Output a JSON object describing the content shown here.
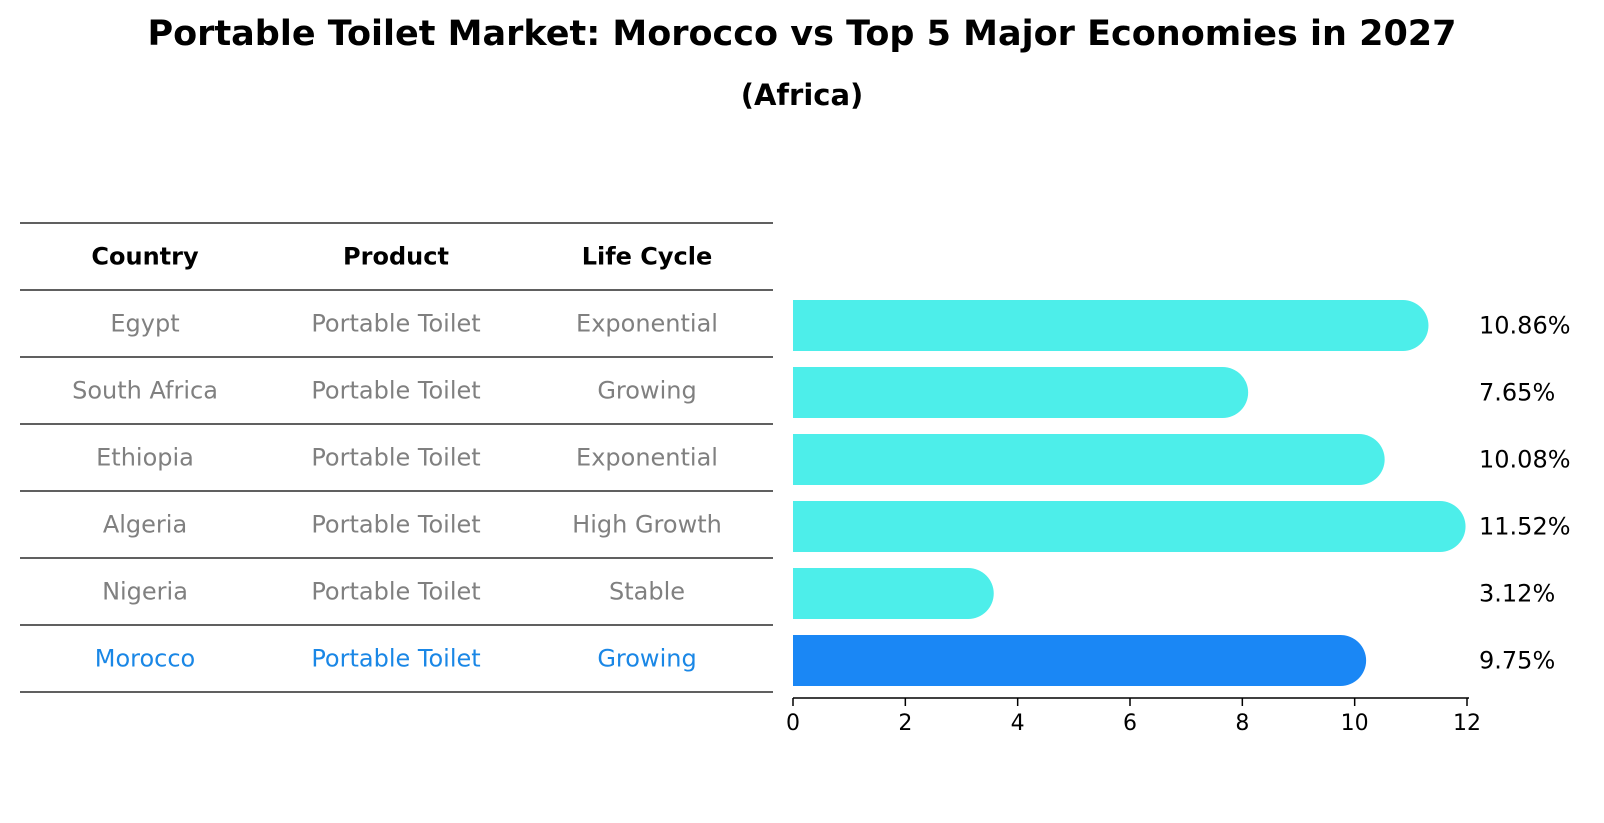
{
  "title": "Portable Toilet Market: Morocco vs Top 5 Major Economies in 2027",
  "subtitle": "(Africa)",
  "table": {
    "headers": [
      "Country",
      "Product",
      "Life Cycle"
    ],
    "rows": [
      {
        "country": "Egypt",
        "product": "Portable Toilet",
        "life_cycle": "Exponential"
      },
      {
        "country": "South Africa",
        "product": "Portable Toilet",
        "life_cycle": "Growing"
      },
      {
        "country": "Ethiopia",
        "product": "Portable Toilet",
        "life_cycle": "Exponential"
      },
      {
        "country": "Algeria",
        "product": "Portable Toilet",
        "life_cycle": "High Growth"
      },
      {
        "country": "Nigeria",
        "product": "Portable Toilet",
        "life_cycle": "Stable"
      },
      {
        "country": "Morocco",
        "product": "Portable Toilet",
        "life_cycle": "Growing"
      }
    ]
  },
  "chart_data": {
    "type": "bar",
    "orientation": "horizontal",
    "categories": [
      "Egypt",
      "South Africa",
      "Ethiopia",
      "Algeria",
      "Nigeria",
      "Morocco"
    ],
    "values": [
      10.86,
      7.65,
      10.08,
      11.52,
      3.12,
      9.75
    ],
    "value_labels": [
      "10.86%",
      "7.65%",
      "10.08%",
      "11.52%",
      "3.12%",
      "9.75%"
    ],
    "highlight": "Morocco",
    "xlim": [
      0,
      12
    ],
    "xticks": [
      0,
      2,
      4,
      6,
      8,
      10,
      12
    ],
    "xlabel": "",
    "ylabel": "",
    "grid": false,
    "colors": {
      "default": "#4deeea",
      "highlight": "#1a87f5",
      "highlight_text": "#1a87e6",
      "muted_text": "#808080"
    }
  }
}
